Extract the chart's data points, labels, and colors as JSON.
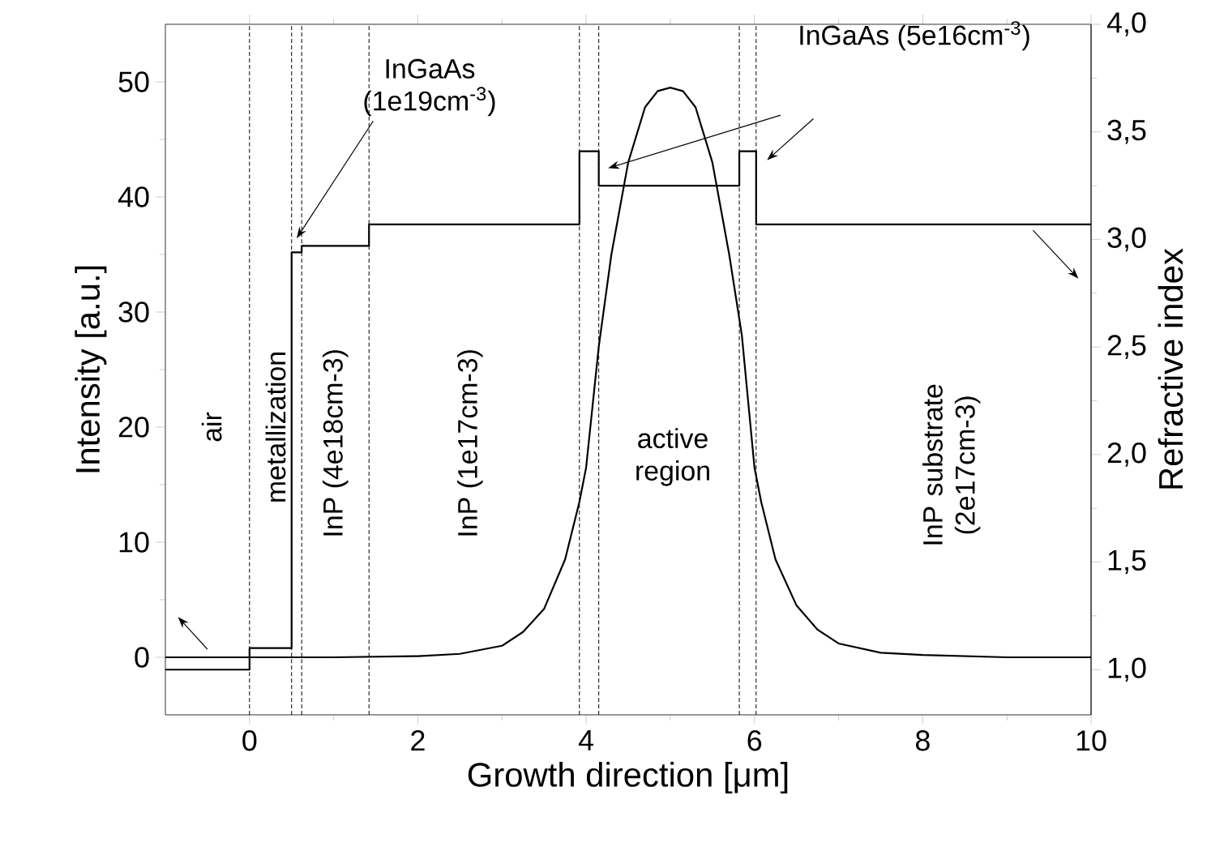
{
  "chart_data": {
    "type": "line",
    "xlabel": "Growth direction [μm]",
    "ylabel": "Intensity [a.u.]",
    "y2label": "Refractive index",
    "xlim": [
      -1,
      10
    ],
    "xticks": [
      0,
      2,
      4,
      6,
      8,
      10
    ],
    "ylim": [
      -5,
      55
    ],
    "yticks": [
      0,
      10,
      20,
      30,
      40,
      50
    ],
    "y2lim": [
      0.79,
      4.0
    ],
    "y2ticks": [
      {
        "value": 1.0,
        "label": "1,0"
      },
      {
        "value": 1.5,
        "label": "1,5"
      },
      {
        "value": 2.0,
        "label": "2,0"
      },
      {
        "value": 2.5,
        "label": "2,5"
      },
      {
        "value": 3.0,
        "label": "3,0"
      },
      {
        "value": 3.5,
        "label": "3,5"
      },
      {
        "value": 4.0,
        "label": "4,0"
      }
    ],
    "series": [
      {
        "type": "line",
        "color": "#000000",
        "x": [
          -1,
          0,
          1,
          2,
          2.5,
          3,
          3.25,
          3.5,
          3.75,
          3.92,
          4.0,
          4.15,
          4.3,
          4.5,
          4.7,
          4.85,
          5.0,
          5.15,
          5.3,
          5.5,
          5.7,
          5.85,
          6.0,
          6.08,
          6.25,
          6.5,
          6.75,
          7,
          7.5,
          8,
          9,
          10
        ],
        "values": [
          0,
          0,
          0,
          0.1,
          0.3,
          1.0,
          2.2,
          4.2,
          8.5,
          13.5,
          16.5,
          27,
          35,
          43,
          47.8,
          49.2,
          49.5,
          49.2,
          47.8,
          43,
          35,
          28,
          16.5,
          13.5,
          8.5,
          4.5,
          2.4,
          1.2,
          0.4,
          0.2,
          0,
          0
        ]
      },
      {
        "type": "step",
        "axis": "y2",
        "color": "#000000",
        "x": [
          -1,
          0,
          0.5,
          0.62,
          1.42,
          3.92,
          4.15,
          5.82,
          6.02,
          10
        ],
        "values": [
          1.0,
          1.1,
          2.94,
          2.97,
          3.07,
          3.41,
          3.25,
          3.41,
          3.07,
          3.07
        ]
      }
    ],
    "ref_lines": [
      {
        "axis": "x",
        "value": 0,
        "line_style": "dashed"
      },
      {
        "axis": "x",
        "value": 0.5,
        "line_style": "dashed"
      },
      {
        "axis": "x",
        "value": 0.62,
        "line_style": "dashed"
      },
      {
        "axis": "x",
        "value": 1.42,
        "line_style": "dashed"
      },
      {
        "axis": "x",
        "value": 3.92,
        "line_style": "dashed"
      },
      {
        "axis": "x",
        "value": 4.15,
        "line_style": "dashed"
      },
      {
        "axis": "x",
        "value": 5.82,
        "line_style": "dashed"
      },
      {
        "axis": "x",
        "value": 6.02,
        "line_style": "dashed"
      }
    ],
    "annotations": [
      "air",
      "metallization",
      "InP (4e18cm-3)",
      "InP (1e17cm-3)",
      {
        "text": "InGaAs (1e19cm$^{-3}$)",
        "x": 0.56,
        "y": 36.4
      },
      "InGaAs (5e16cm$^{-3}$)",
      "active region",
      "InP substrate (2e17cm-3)"
    ],
    "marker": "none",
    "line_style": "solid"
  }
}
